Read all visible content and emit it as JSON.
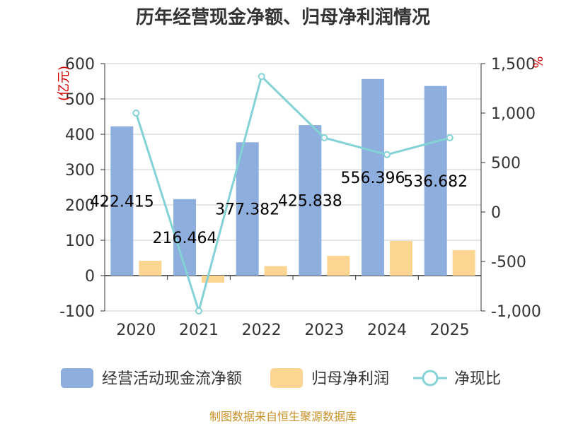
{
  "chart_data": {
    "type": "bar",
    "title": "历年经营现金净额、归母净利润情况",
    "categories": [
      "2020",
      "2021",
      "2022",
      "2023",
      "2024",
      "2025"
    ],
    "left_axis": {
      "unit": "(亿元)",
      "ylim": [
        -100,
        600
      ],
      "ticks": [
        -100,
        0,
        100,
        200,
        300,
        400,
        500,
        600
      ],
      "tick_labels": [
        "-100",
        "0",
        "100",
        "200",
        "300",
        "400",
        "500",
        "600"
      ]
    },
    "right_axis": {
      "unit": "%",
      "ylim": [
        -1000,
        1500
      ],
      "ticks": [
        -1000,
        -500,
        0,
        500,
        1000,
        1500
      ],
      "tick_labels": [
        "-1,000",
        "-500",
        "0",
        "500",
        "1,000",
        "1,500"
      ]
    },
    "series": [
      {
        "name": "经营活动现金流净额",
        "type": "bar",
        "axis": "left",
        "color": "#8eaedd",
        "values": [
          422.415,
          216.464,
          377.382,
          425.838,
          556.396,
          536.682
        ],
        "labels": [
          "422.415",
          "216.464",
          "377.382",
          "425.838",
          "556.396",
          "536.682"
        ]
      },
      {
        "name": "归母净利润",
        "type": "bar",
        "axis": "left",
        "color": "#fdd694",
        "values": [
          42,
          -20,
          27,
          56,
          98,
          72
        ]
      },
      {
        "name": "净现比",
        "type": "line",
        "axis": "right",
        "color": "#84d2d6",
        "values": [
          1000,
          -1000,
          1370,
          750,
          580,
          750
        ]
      }
    ],
    "legend_position": "bottom",
    "grid": true
  },
  "footer": {
    "source": "制图数据来自恒生聚源数据库"
  }
}
